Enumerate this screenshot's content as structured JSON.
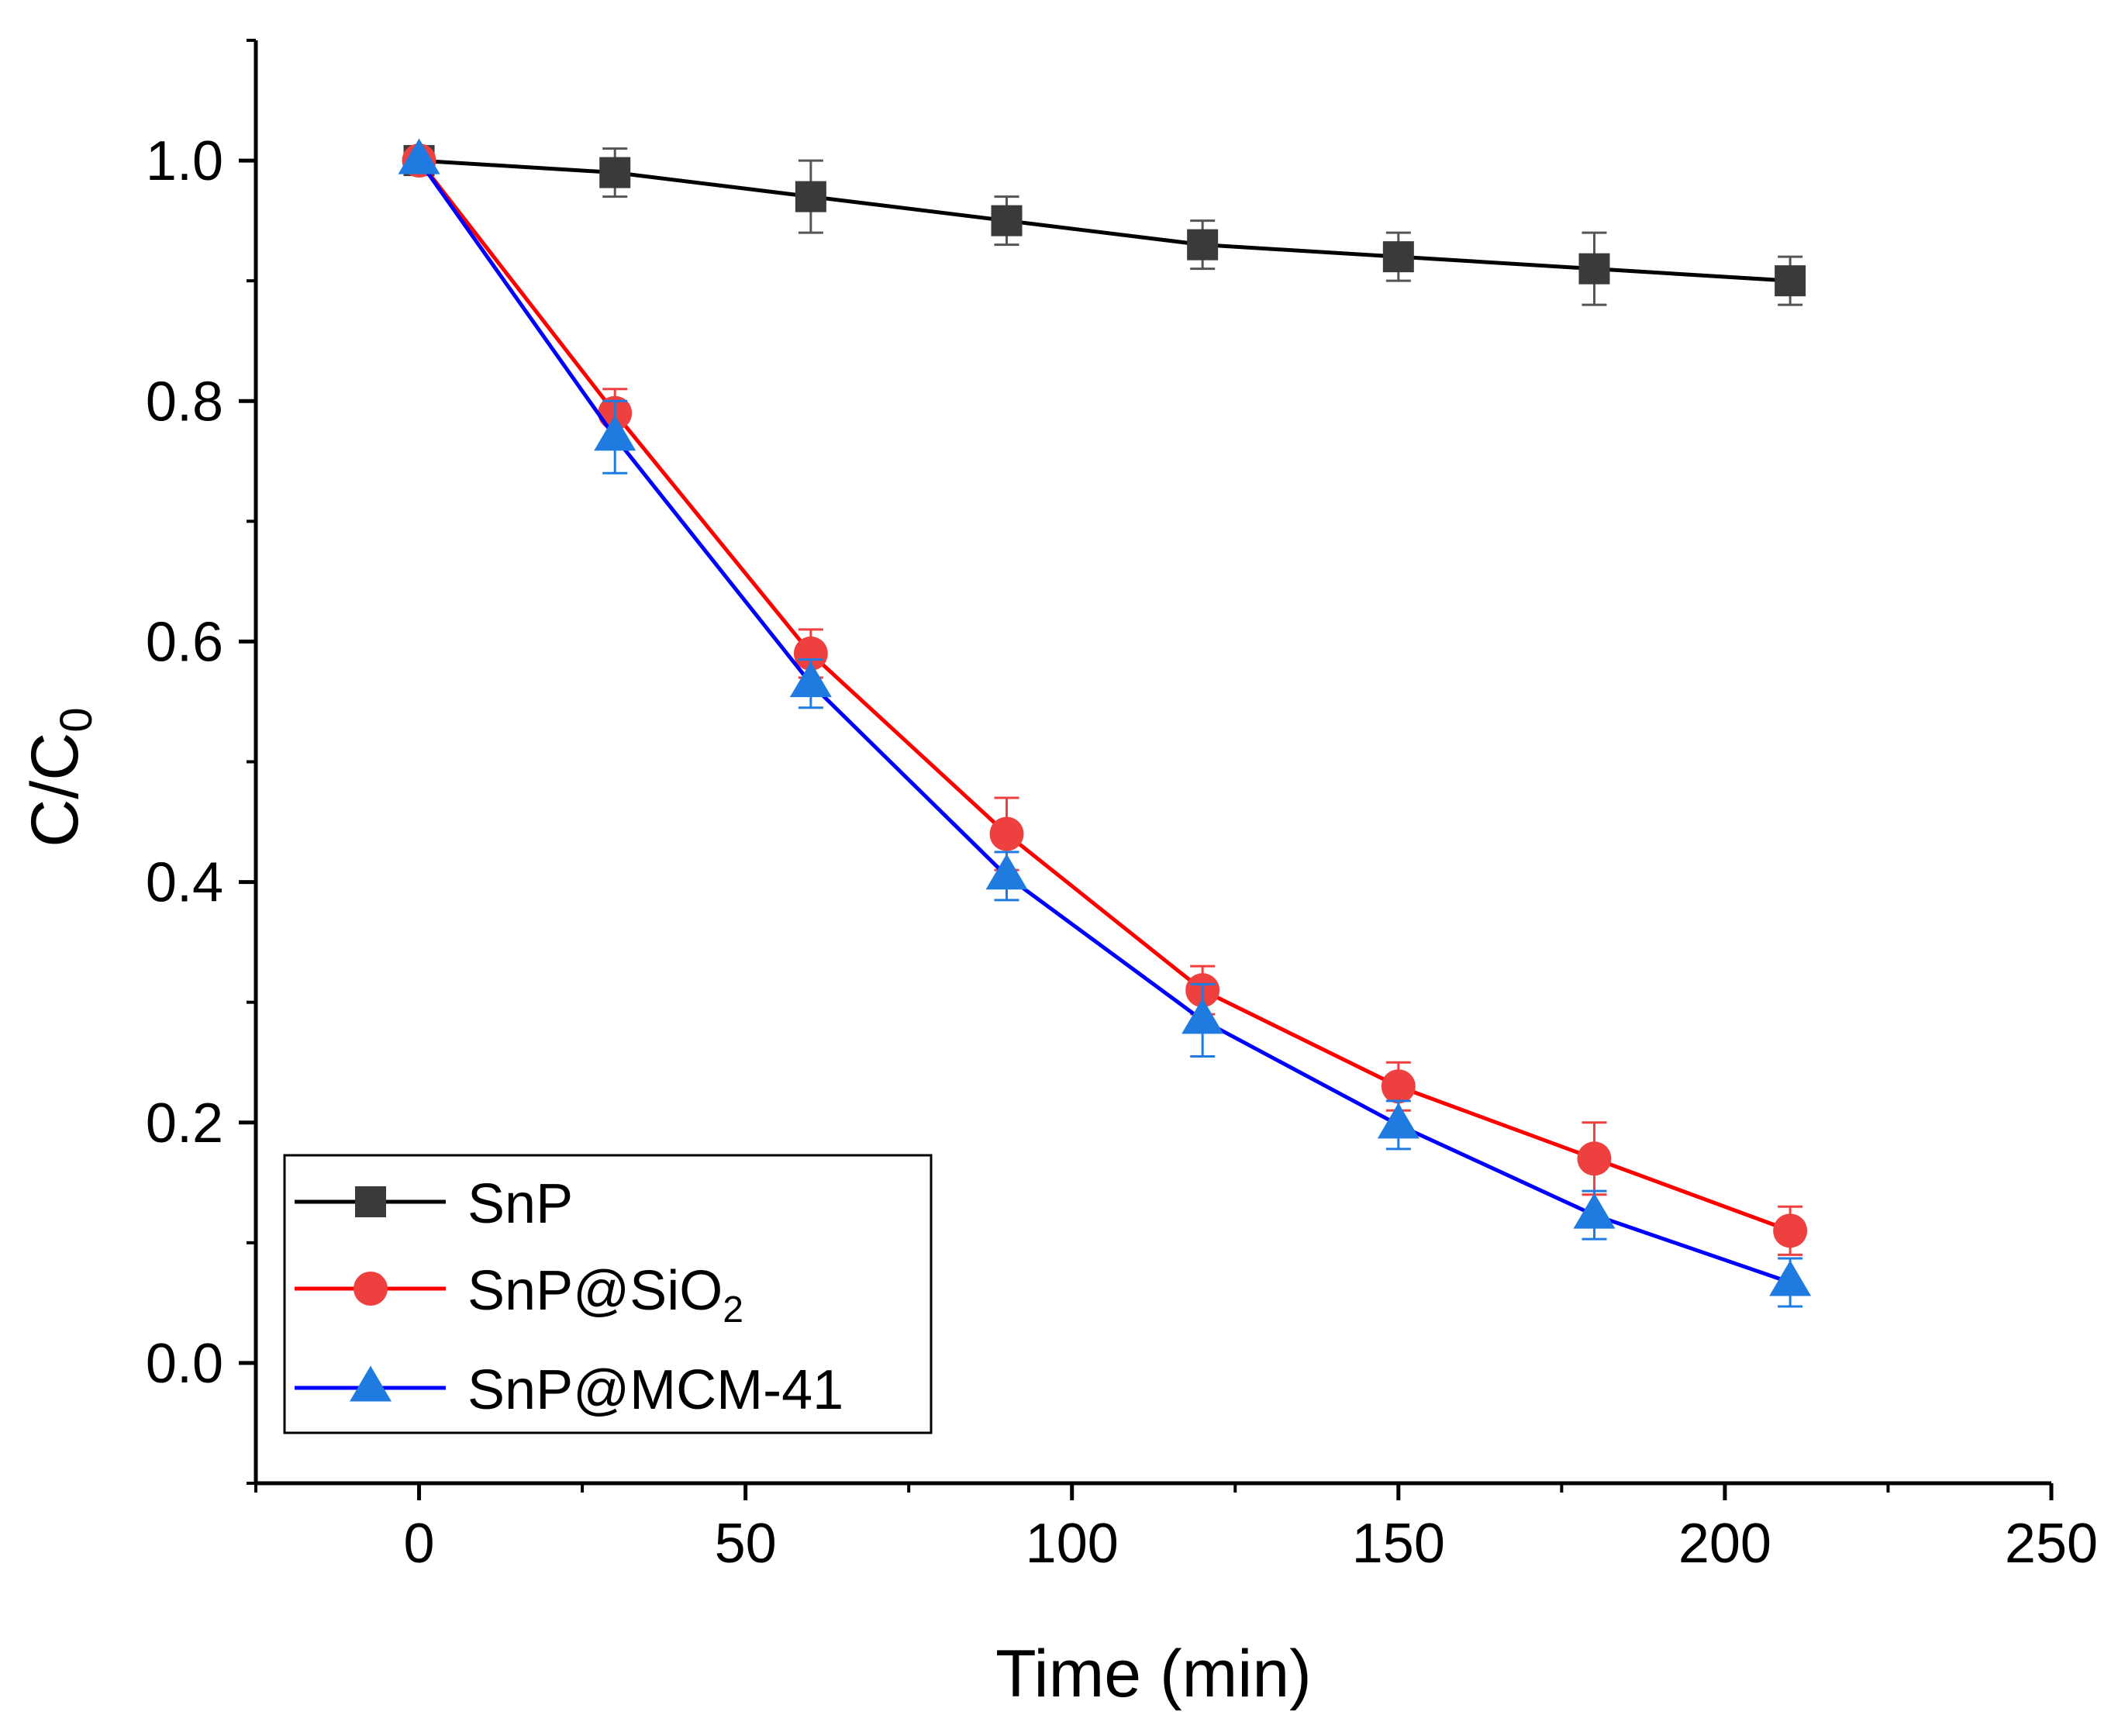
{
  "chart_data": {
    "type": "line",
    "title": "",
    "xlabel": "Time (min)",
    "ylabel_main": "C/C",
    "ylabel_sub": "0",
    "xlim": [
      -25,
      250
    ],
    "ylim": [
      -0.1,
      1.1
    ],
    "x_ticks": [
      0,
      50,
      100,
      150,
      200,
      250
    ],
    "x_tick_labels": [
      "0",
      "50",
      "100",
      "150",
      "200",
      "250"
    ],
    "x_minor_ticks": [
      -25,
      25,
      75,
      125,
      175,
      225
    ],
    "y_ticks": [
      0.0,
      0.2,
      0.4,
      0.6,
      0.8,
      1.0
    ],
    "y_tick_labels": [
      "0.0",
      "0.2",
      "0.4",
      "0.6",
      "0.8",
      "1.0"
    ],
    "y_minor_ticks": [
      -0.1,
      0.1,
      0.3,
      0.5,
      0.7,
      0.9,
      1.1
    ],
    "grid": false,
    "legend_position": "bottom-left",
    "x": [
      0,
      30,
      60,
      90,
      120,
      150,
      180,
      210
    ],
    "series": [
      {
        "name": "SnP",
        "legend_main": "SnP",
        "legend_sub": "",
        "legend_tail": "",
        "marker": "square",
        "line_color": "#000000",
        "marker_color": "#3a3a3a",
        "error_color": "#555555",
        "values": [
          1.0,
          0.99,
          0.97,
          0.95,
          0.93,
          0.92,
          0.91,
          0.9
        ],
        "errors": [
          0.0,
          0.02,
          0.03,
          0.02,
          0.02,
          0.02,
          0.03,
          0.02
        ]
      },
      {
        "name": "SnP@SiO2",
        "legend_main": "SnP@SiO",
        "legend_sub": "2",
        "legend_tail": "",
        "marker": "circle",
        "line_color": "#ff0000",
        "marker_color": "#ef4040",
        "error_color": "#ef4040",
        "values": [
          1.0,
          0.79,
          0.59,
          0.44,
          0.31,
          0.23,
          0.17,
          0.11
        ],
        "errors": [
          0.0,
          0.02,
          0.02,
          0.03,
          0.02,
          0.02,
          0.03,
          0.02
        ]
      },
      {
        "name": "SnP@MCM-41",
        "legend_main": "SnP@MCM-41",
        "legend_sub": "",
        "legend_tail": "",
        "marker": "triangle",
        "line_color": "#0000ff",
        "marker_color": "#1f7be0",
        "error_color": "#1f7be0",
        "values": [
          1.0,
          0.77,
          0.565,
          0.405,
          0.285,
          0.198,
          0.123,
          0.067
        ],
        "errors": [
          0.0,
          0.03,
          0.02,
          0.02,
          0.03,
          0.02,
          0.02,
          0.02
        ]
      }
    ]
  }
}
